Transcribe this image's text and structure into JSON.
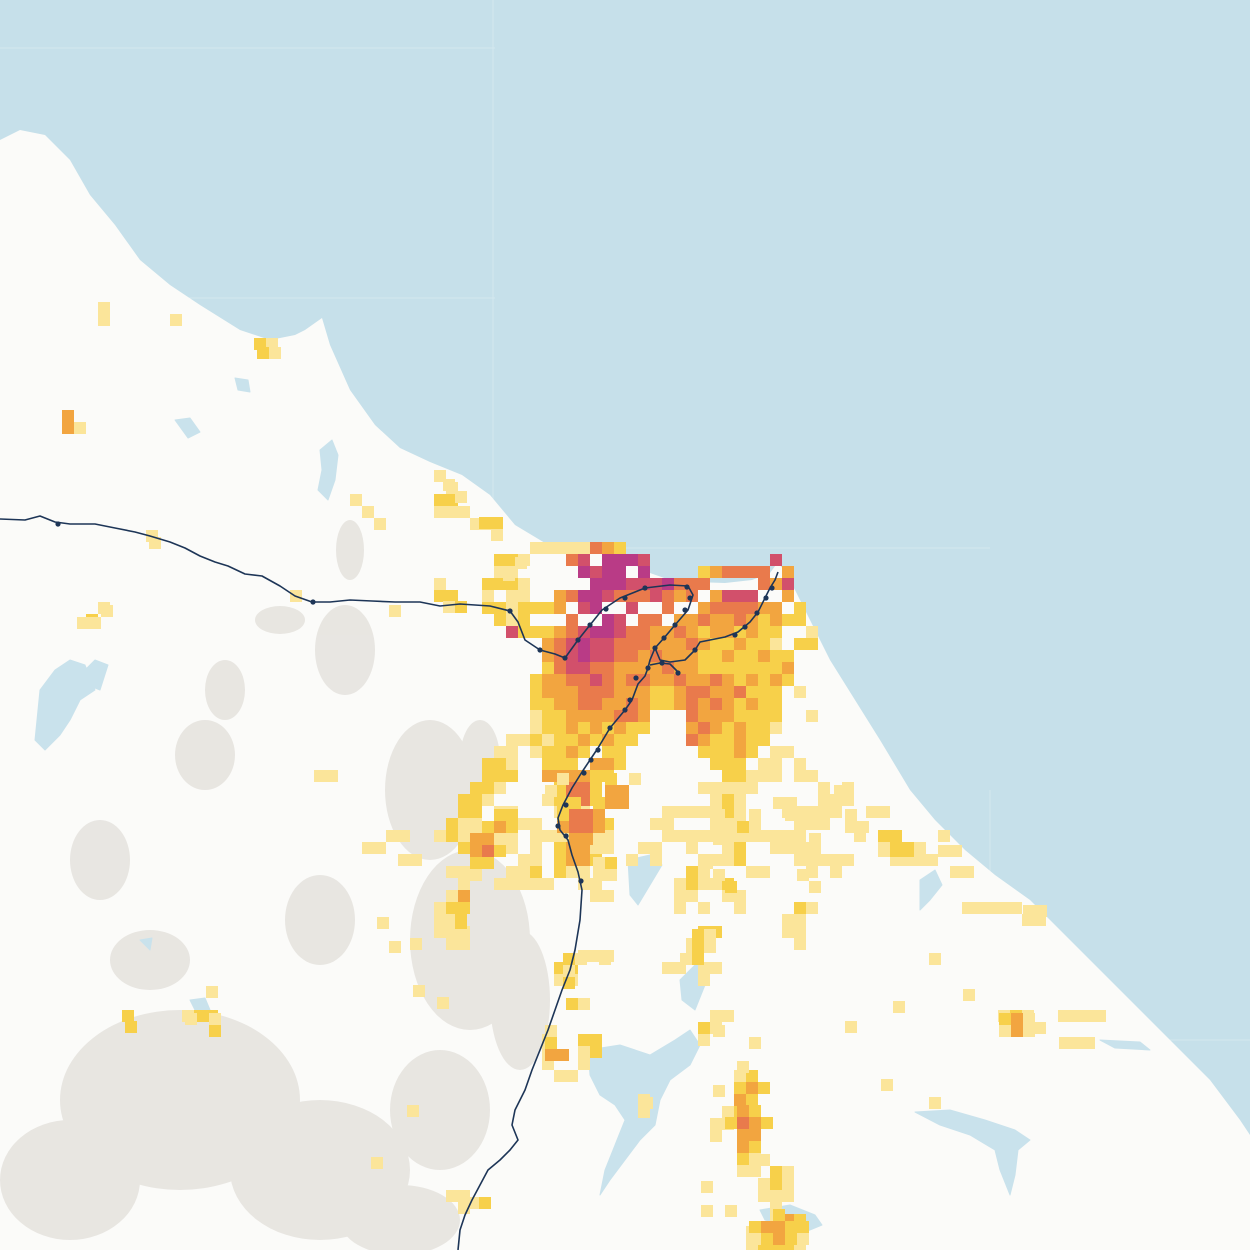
{
  "map": {
    "colors": {
      "sea": "#c6e0ea",
      "land": "#fbfbf9",
      "water": "#c9e2ec",
      "relief": "#d9d5cf",
      "rail": "#1d3557",
      "station": "#1d3557"
    },
    "density_scale": [
      "#fdf2cf",
      "#fbe59a",
      "#f7d04a",
      "#f2a540",
      "#e97a4c",
      "#d2506b",
      "#b93b86"
    ],
    "legend": null
  }
}
